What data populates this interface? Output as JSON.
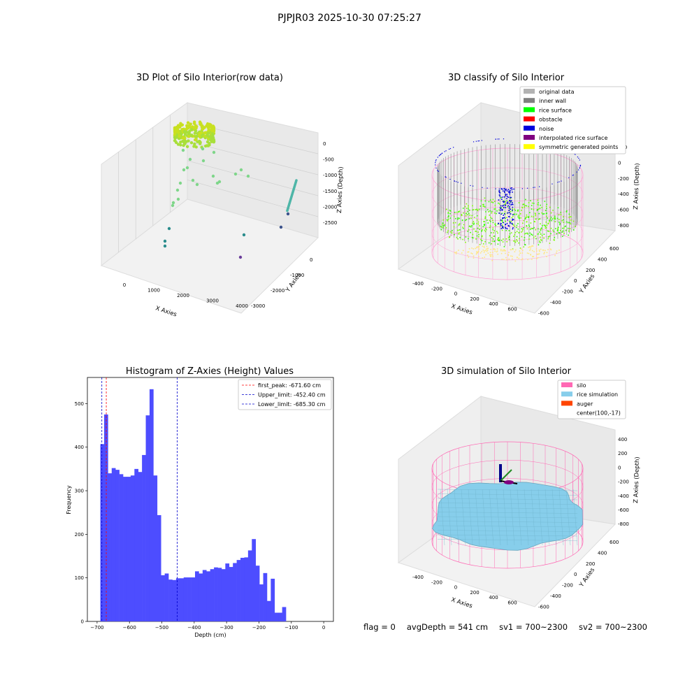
{
  "suptitle": "PJPJR03 2025-10-30 07:25:27",
  "panels": {
    "raw": {
      "title": "3D Plot of Silo Interior(row data)",
      "xlabel": "X Axies",
      "ylabel": "Y Axies",
      "zlabel": "Z Axies (Depth)",
      "xticks": [
        "0",
        "1000",
        "2000",
        "3000",
        "4000"
      ],
      "yticks": [
        "0",
        "-1000",
        "-2000",
        "-3000"
      ],
      "zticks": [
        "0",
        "-500",
        "-1000",
        "-1500",
        "-2000",
        "-2500"
      ]
    },
    "classify": {
      "title": "3D classify of Silo Interior",
      "xlabel": "X Axies",
      "ylabel": "Y Axies",
      "zlabel": "Z Axies (Depth)",
      "xticks": [
        "-400",
        "-200",
        "0",
        "200",
        "400",
        "600"
      ],
      "yticks": [
        "600",
        "400",
        "200",
        "0",
        "-200",
        "-400",
        "-600"
      ],
      "zticks": [
        "200",
        "0",
        "-200",
        "-400",
        "-600",
        "-800"
      ],
      "legend": [
        {
          "label": "original data",
          "color": "#b3b3b3"
        },
        {
          "label": "inner wall",
          "color": "#808080"
        },
        {
          "label": "rice surface",
          "color": "#00ff00"
        },
        {
          "label": "obstacle",
          "color": "#ff0000"
        },
        {
          "label": "noise",
          "color": "#0000dd"
        },
        {
          "label": "interpolated rice surface",
          "color": "#800080"
        },
        {
          "label": "symmetric generated points",
          "color": "#ffff00"
        }
      ]
    },
    "simulation": {
      "title": "3D simulation of Silo Interior",
      "xlabel": "X Axies",
      "ylabel": "Y Axies",
      "zlabel": "Z Axies (Depth)",
      "xticks": [
        "-400",
        "-200",
        "0",
        "200",
        "400",
        "600"
      ],
      "yticks": [
        "600",
        "400",
        "200",
        "0",
        "-200",
        "-400",
        "-600"
      ],
      "zticks": [
        "400",
        "200",
        "0",
        "-200",
        "-400",
        "-600",
        "-800"
      ],
      "legend": [
        {
          "label": "silo",
          "color": "#ff69b4"
        },
        {
          "label": "rice simulation",
          "color": "#87ceeb"
        },
        {
          "label": "auger",
          "color": "#ff4500"
        },
        {
          "label": "center(100,-17)",
          "color": ""
        }
      ]
    }
  },
  "chart_data": {
    "type": "bar",
    "title": "Histogram of Z-Axies (Height) Values",
    "xlabel": "Depth (cm)",
    "ylabel": "Frequency",
    "xlim": [
      -730,
      30
    ],
    "ylim": [
      0,
      560
    ],
    "xticks": [
      -700,
      -600,
      -500,
      -400,
      -300,
      -200,
      -100,
      0
    ],
    "yticks": [
      0,
      100,
      200,
      300,
      400,
      500
    ],
    "bar_color": "#4d4dff",
    "bin_start": -690,
    "bin_width": 11.7,
    "counts": [
      407,
      475,
      340,
      352,
      348,
      338,
      332,
      332,
      335,
      350,
      343,
      382,
      473,
      533,
      335,
      244,
      106,
      110,
      96,
      95,
      99,
      99,
      101,
      101,
      101,
      115,
      110,
      118,
      115,
      120,
      124,
      123,
      120,
      133,
      125,
      134,
      141,
      146,
      147,
      163,
      189,
      128,
      85,
      111,
      47,
      98,
      20,
      20,
      33
    ],
    "vlines": [
      {
        "label": "first_peak: -671.60 cm",
        "x": -671.6,
        "color": "#ff0000"
      },
      {
        "label": "Upper_limit: -452.40 cm",
        "x": -452.4,
        "color": "#0000cc"
      },
      {
        "label": "Lower_limit: -685.30 cm",
        "x": -685.3,
        "color": "#0000cc"
      }
    ],
    "legend_position": "top-right"
  },
  "footer": {
    "flag": "flag = 0",
    "avg_depth": "avgDepth = 541 cm",
    "sv1": "sv1 = 700~2300",
    "sv2": "sv2 = 700~2300"
  }
}
